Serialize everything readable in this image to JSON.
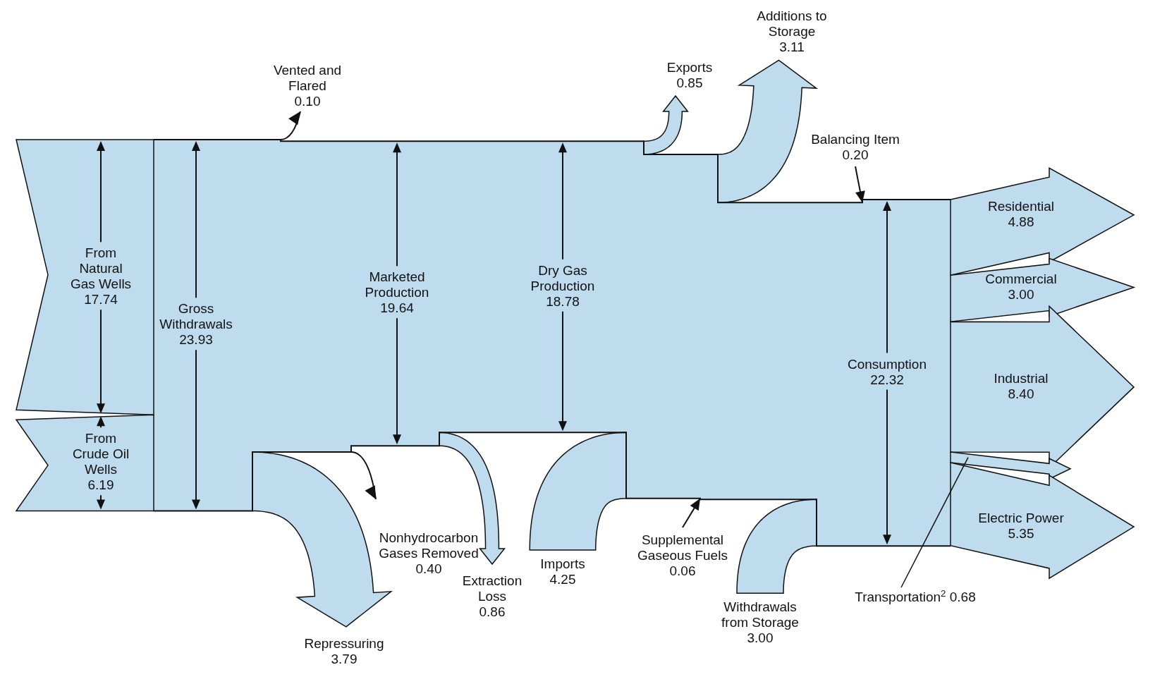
{
  "chart_data": {
    "type": "other",
    "color": "#bfdcee",
    "categories": [
      "From Natural Gas Wells",
      "From Crude Oil Wells",
      "Gross Withdrawals",
      "Vented and Flared",
      "Repressuring",
      "Nonhydrocarbon Gases Removed",
      "Marketed Production",
      "Extraction Loss",
      "Dry Gas Production",
      "Exports",
      "Additions to Storage",
      "Imports",
      "Supplemental Gaseous Fuels",
      "Withdrawals from Storage",
      "Balancing Item",
      "Consumption",
      "Residential",
      "Commercial",
      "Industrial",
      "Transportation$^{2}$",
      "Electric Power"
    ],
    "values": [
      17.74,
      6.19,
      23.93,
      0.1,
      3.79,
      0.4,
      19.64,
      0.86,
      18.78,
      0.85,
      3.11,
      4.25,
      0.06,
      3.0,
      0.2,
      22.32,
      4.88,
      3.0,
      8.4,
      0.68,
      5.35
    ],
    "value_labels": [
      "17.74",
      "6.19",
      "23.93",
      "0.10",
      "3.79",
      "0.40",
      "19.64",
      "0.86",
      "18.78",
      "0.85",
      "3.11",
      "4.25",
      "0.06",
      "3.00",
      "0.20",
      "22.32",
      "4.88",
      "3.00",
      "8.40",
      "0.68",
      "5.35"
    ]
  }
}
